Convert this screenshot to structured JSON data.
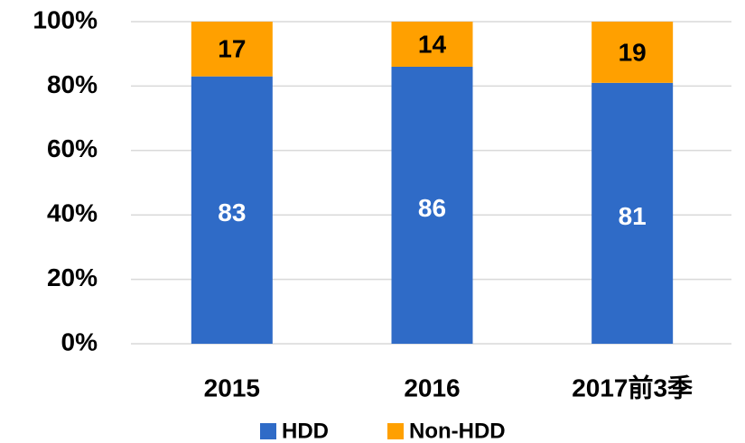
{
  "chart_data": {
    "type": "stacked_bar",
    "categories": [
      "2015",
      "2016",
      "2017前3季"
    ],
    "series": [
      {
        "name": "HDD",
        "color": "#2f6bc7",
        "values": [
          83,
          86,
          81
        ]
      },
      {
        "name": "Non-HDD",
        "color": "#ffa000",
        "values": [
          17,
          14,
          19
        ]
      }
    ],
    "ylim": [
      0,
      100
    ],
    "yticks": [
      {
        "value": 0,
        "label": "0%"
      },
      {
        "value": 20,
        "label": "20%"
      },
      {
        "value": 40,
        "label": "40%"
      },
      {
        "value": 60,
        "label": "60%"
      },
      {
        "value": 80,
        "label": "80%"
      },
      {
        "value": 100,
        "label": "100%"
      }
    ],
    "grid": true,
    "legend": "bottom"
  }
}
